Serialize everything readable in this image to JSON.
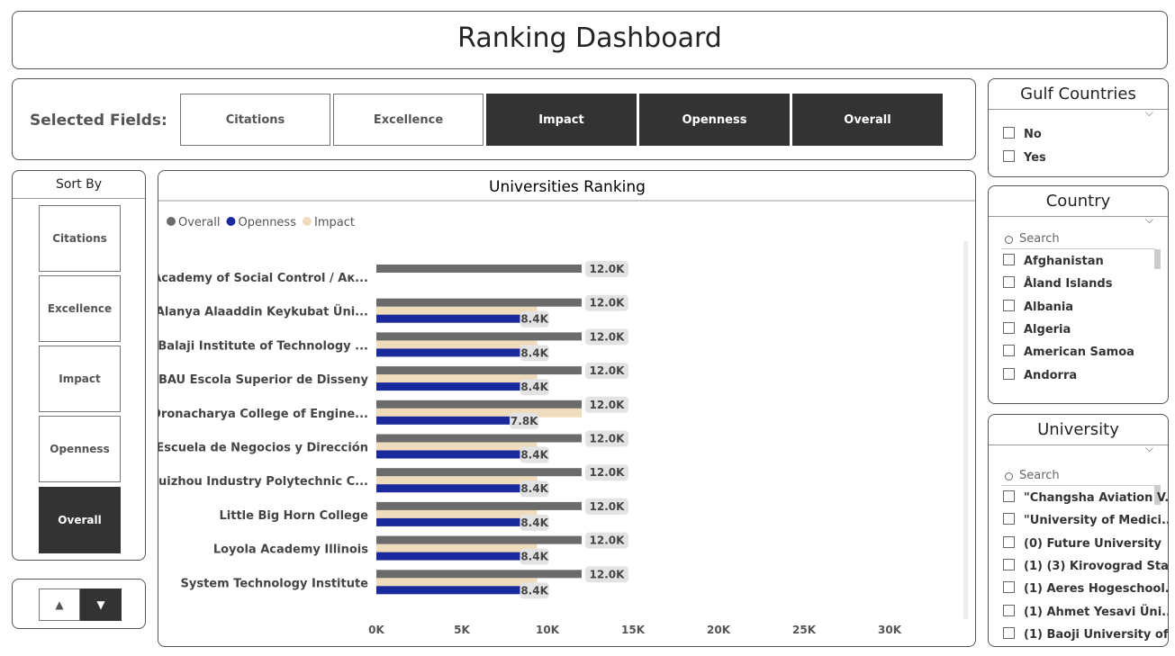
{
  "header": {
    "title": "Ranking Dashboard"
  },
  "selected_fields": {
    "label": "Selected Fields:",
    "options": [
      {
        "label": "Citations",
        "selected": false
      },
      {
        "label": "Excellence",
        "selected": false
      },
      {
        "label": "Impact",
        "selected": true
      },
      {
        "label": "Openness",
        "selected": true
      },
      {
        "label": "Overall",
        "selected": true
      }
    ]
  },
  "sort_by": {
    "title": "Sort By",
    "options": [
      {
        "label": "Citations",
        "selected": false
      },
      {
        "label": "Excellence",
        "selected": false
      },
      {
        "label": "Impact",
        "selected": false
      },
      {
        "label": "Openness",
        "selected": false
      },
      {
        "label": "Overall",
        "selected": true
      }
    ]
  },
  "filters": [
    {
      "title": "Gulf Countries",
      "items": [
        "No",
        "Yes"
      ]
    },
    {
      "title": "Country",
      "search": "Search",
      "items": [
        "Afghanistan",
        "Åland Islands",
        "Albania",
        "Algeria",
        "American Samoa",
        "Andorra"
      ]
    },
    {
      "title": "University",
      "search": "Search",
      "items": [
        "\"Changsha Aviation V...",
        "\"University of Medici...",
        "(0) Future University",
        "(1) (3) Kirovograd Sta...",
        "(1) Aeres Hogeschool...",
        "(1) Ahmet Yesavi Üni...",
        "(1) Baoji University of..."
      ]
    }
  ],
  "chart_data": {
    "type": "bar",
    "orientation": "horizontal",
    "title": "Universities Ranking",
    "categories": [
      "Academy of Social Control / Ак...",
      "Alanya Alaaddin Keykubat Üni...",
      "Balaji Institute of Technology ...",
      "BAU Escola Superior de Disseny",
      "Dronacharya College of Engine...",
      "Escuela de Negocios y Dirección",
      "Guizhou Industry Polytechnic C...",
      "Little Big Horn College",
      "Loyola Academy Illinois",
      "System Technology Institute"
    ],
    "series": [
      {
        "name": "Overall",
        "color": "#6b6b6b",
        "values": [
          12000,
          12000,
          12000,
          12000,
          12000,
          12000,
          12000,
          12000,
          12000,
          12000
        ],
        "value_labels": [
          "12.0K",
          "12.0K",
          "12.0K",
          "12.0K",
          "12.0K",
          "12.0K",
          "12.0K",
          "12.0K",
          "12.0K",
          "12.0K"
        ]
      },
      {
        "name": "Openness",
        "color": "#1a2a9c",
        "values": [
          null,
          8400,
          8400,
          8400,
          7800,
          8400,
          8400,
          8400,
          8400,
          8400
        ],
        "value_labels": [
          null,
          "8.4K",
          "8.4K",
          "8.4K",
          "7.8K",
          "8.4K",
          "8.4K",
          "8.4K",
          "8.4K",
          "8.4K"
        ]
      },
      {
        "name": "Impact",
        "color": "#efdcbd",
        "values": [
          null,
          9400,
          9400,
          9400,
          12000,
          9400,
          9400,
          9400,
          9400,
          9400
        ]
      }
    ],
    "xlim": [
      0,
      33000
    ],
    "xticks": [
      {
        "value": 0,
        "label": "0K"
      },
      {
        "value": 5000,
        "label": "5K"
      },
      {
        "value": 10000,
        "label": "10K"
      },
      {
        "value": 15000,
        "label": "15K"
      },
      {
        "value": 20000,
        "label": "20K"
      },
      {
        "value": 25000,
        "label": "25K"
      },
      {
        "value": 30000,
        "label": "30K"
      }
    ]
  }
}
